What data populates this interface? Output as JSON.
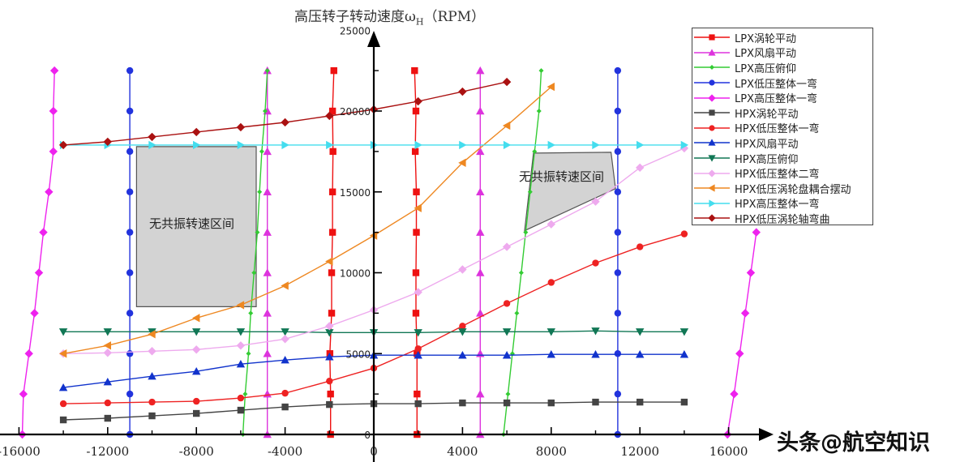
{
  "chart_data": {
    "type": "line",
    "title": "高压转子转动速度ω_H（RPM）",
    "title_main": "高压转子转动速度ω",
    "title_sub": "H",
    "title_unit": "（RPM）",
    "xlabel": "",
    "ylabel": "高压转子转动速度ω_H（RPM）",
    "xlim": [
      -17000,
      17500
    ],
    "ylim": [
      0,
      25000
    ],
    "x_ticks": [
      -16000,
      -12000,
      -8000,
      -4000,
      0,
      4000,
      8000,
      12000,
      16000
    ],
    "x_tick_labels": [
      "-16000",
      "-12000",
      "-8000",
      "-4000",
      "0",
      "4000",
      "8000",
      "12000",
      "16000"
    ],
    "x_minor_ticks": [
      -14000,
      -10000,
      -6000,
      -2000,
      2000,
      6000,
      10000,
      14000
    ],
    "y_ticks": [
      0,
      5000,
      10000,
      15000,
      20000,
      25000
    ],
    "y_tick_labels": [
      "0",
      "5000",
      "10000",
      "15000",
      "20000",
      "25000"
    ],
    "y_minor_ticks": [
      2500,
      7500,
      12500,
      17500,
      22500
    ],
    "grid": false,
    "legend_position": "upper right",
    "annotations": [
      {
        "text": "无共振转速区间",
        "region": "left",
        "polygon": [
          [
            -10700,
            17800
          ],
          [
            -5300,
            17800
          ],
          [
            -5300,
            7900
          ],
          [
            -10700,
            7900
          ]
        ]
      },
      {
        "text": "无共振转速区间",
        "region": "right",
        "polygon": [
          [
            7200,
            17400
          ],
          [
            10700,
            17450
          ],
          [
            10900,
            15200
          ],
          [
            6800,
            12600
          ]
        ]
      }
    ],
    "series": [
      {
        "name": "LPX涡轮平动",
        "color": "#ee1111",
        "marker": "square",
        "segments": [
          [
            [
              -1950,
              0
            ],
            [
              -1950,
              2500
            ],
            [
              -1980,
              5000
            ],
            [
              -1900,
              7500
            ],
            [
              -1900,
              10000
            ],
            [
              -1860,
              12500
            ],
            [
              -1860,
              15000
            ],
            [
              -1840,
              17500
            ],
            [
              -1860,
              20000
            ],
            [
              -1800,
              22500
            ]
          ],
          [
            [
              1950,
              0
            ],
            [
              1950,
              2500
            ],
            [
              1950,
              5000
            ],
            [
              1900,
              7500
            ],
            [
              1900,
              10000
            ],
            [
              1920,
              12500
            ],
            [
              1920,
              15000
            ],
            [
              1870,
              17500
            ],
            [
              1900,
              20000
            ],
            [
              1840,
              22500
            ]
          ]
        ]
      },
      {
        "name": "LPX风扇平动",
        "color": "#dd33dd",
        "marker": "triangle-up",
        "segments": [
          [
            [
              -4800,
              0
            ],
            [
              -4800,
              2500
            ],
            [
              -4800,
              5000
            ],
            [
              -4800,
              7500
            ],
            [
              -4800,
              10000
            ],
            [
              -4800,
              12500
            ],
            [
              -4800,
              15000
            ],
            [
              -4800,
              17500
            ],
            [
              -4800,
              20000
            ],
            [
              -4800,
              22500
            ]
          ],
          [
            [
              4800,
              0
            ],
            [
              4800,
              2500
            ],
            [
              4800,
              5000
            ],
            [
              4800,
              7500
            ],
            [
              4800,
              10000
            ],
            [
              4800,
              12500
            ],
            [
              4800,
              15000
            ],
            [
              4800,
              17500
            ],
            [
              4800,
              20000
            ],
            [
              4800,
              22500
            ]
          ]
        ]
      },
      {
        "name": "LPX高压俯仰",
        "color": "#33cc33",
        "marker": "small-diamond",
        "segments": [
          [
            [
              -5900,
              0
            ],
            [
              -5800,
              2500
            ],
            [
              -5650,
              5000
            ],
            [
              -5550,
              7500
            ],
            [
              -5400,
              10000
            ],
            [
              -5250,
              12500
            ],
            [
              -5150,
              15000
            ],
            [
              -5050,
              17500
            ],
            [
              -4900,
              20000
            ],
            [
              -4800,
              22500
            ]
          ],
          [
            [
              5850,
              0
            ],
            [
              6050,
              2500
            ],
            [
              6250,
              5000
            ],
            [
              6450,
              7500
            ],
            [
              6650,
              10000
            ],
            [
              6850,
              12500
            ],
            [
              7050,
              15000
            ],
            [
              7250,
              17500
            ],
            [
              7450,
              20000
            ],
            [
              7550,
              22500
            ]
          ]
        ]
      },
      {
        "name": "LPX低压整体一弯",
        "color": "#2233dd",
        "marker": "circle",
        "segments": [
          [
            [
              -11000,
              0
            ],
            [
              -11000,
              2500
            ],
            [
              -11000,
              5000
            ],
            [
              -11000,
              7500
            ],
            [
              -11000,
              10000
            ],
            [
              -11000,
              12500
            ],
            [
              -11000,
              15000
            ],
            [
              -11000,
              17500
            ],
            [
              -11000,
              20000
            ],
            [
              -11000,
              22500
            ]
          ],
          [
            [
              11000,
              0
            ],
            [
              11000,
              2500
            ],
            [
              11000,
              5000
            ],
            [
              11000,
              7500
            ],
            [
              11000,
              10000
            ],
            [
              11000,
              12500
            ],
            [
              11000,
              15000
            ],
            [
              11000,
              17500
            ],
            [
              11000,
              20000
            ],
            [
              11000,
              22500
            ]
          ]
        ]
      },
      {
        "name": "LPX高压整体一弯",
        "color": "#ee22ee",
        "marker": "diamond",
        "segments": [
          [
            [
              -15850,
              0
            ],
            [
              -15800,
              2500
            ],
            [
              -15550,
              5000
            ],
            [
              -15300,
              7500
            ],
            [
              -15100,
              10000
            ],
            [
              -14900,
              12500
            ],
            [
              -14650,
              15000
            ],
            [
              -14450,
              17500
            ],
            [
              -14450,
              20000
            ],
            [
              -14400,
              22500
            ]
          ],
          [
            [
              15950,
              0
            ],
            [
              16250,
              2500
            ],
            [
              16500,
              5000
            ],
            [
              16750,
              7500
            ],
            [
              17000,
              10000
            ],
            [
              17250,
              12500
            ]
          ]
        ]
      },
      {
        "name": "HPX涡轮平动",
        "color": "#444444",
        "marker": "square",
        "x": [
          -14000,
          -12000,
          -10000,
          -8000,
          -6000,
          -4000,
          -2000,
          0,
          2000,
          4000,
          6000,
          8000,
          10000,
          12000,
          14000
        ],
        "values": [
          900,
          1000,
          1150,
          1300,
          1500,
          1700,
          1850,
          1900,
          1900,
          1950,
          1950,
          1950,
          2000,
          2000,
          2000
        ]
      },
      {
        "name": "HPX低压整体一弯",
        "color": "#ee2222",
        "marker": "circle",
        "x": [
          -14000,
          -12000,
          -10000,
          -8000,
          -6000,
          -4000,
          -2000,
          0,
          2000,
          4000,
          6000,
          8000,
          10000,
          12000,
          14000
        ],
        "values": [
          1900,
          1950,
          2000,
          2050,
          2250,
          2550,
          3300,
          4100,
          5300,
          6700,
          8100,
          9400,
          10600,
          11600,
          12400
        ]
      },
      {
        "name": "HPX风扇平动",
        "color": "#1133cc",
        "marker": "triangle-up",
        "x": [
          -14000,
          -12000,
          -10000,
          -8000,
          -6000,
          -4000,
          -2000,
          0,
          2000,
          4000,
          6000,
          8000,
          10000,
          12000,
          14000
        ],
        "values": [
          2900,
          3250,
          3600,
          3900,
          4350,
          4600,
          4800,
          4900,
          4900,
          4900,
          4900,
          4950,
          4950,
          4950,
          4950
        ]
      },
      {
        "name": "HPX高压俯仰",
        "color": "#117755",
        "marker": "triangle-down",
        "x": [
          -14000,
          -12000,
          -10000,
          -8000,
          -6000,
          -4000,
          -2000,
          0,
          2000,
          4000,
          6000,
          8000,
          10000,
          12000,
          14000
        ],
        "values": [
          6350,
          6350,
          6350,
          6350,
          6350,
          6350,
          6300,
          6300,
          6300,
          6350,
          6350,
          6350,
          6400,
          6350,
          6350
        ]
      },
      {
        "name": "HPX低压整体二弯",
        "color": "#eeaaee",
        "marker": "diamond",
        "x": [
          -14000,
          -12000,
          -10000,
          -8000,
          -6000,
          -4000,
          -2000,
          0,
          2000,
          4000,
          6000,
          8000,
          10000,
          12000,
          14000
        ],
        "values": [
          5000,
          5050,
          5150,
          5250,
          5500,
          5900,
          6700,
          7700,
          8800,
          10200,
          11600,
          13000,
          14400,
          16500,
          17700
        ]
      },
      {
        "name": "HPX低压涡轮盘耦合摆动",
        "color": "#ee8822",
        "marker": "triangle-left",
        "x": [
          -14000,
          -12000,
          -10000,
          -8000,
          -6000,
          -4000,
          -2000,
          0,
          2000,
          4000,
          6000,
          8000
        ],
        "values": [
          5000,
          5500,
          6200,
          7200,
          8000,
          9200,
          10700,
          12300,
          14000,
          16800,
          19100,
          21500
        ]
      },
      {
        "name": "HPX高压整体一弯",
        "color": "#44ddee",
        "marker": "triangle-right",
        "x": [
          -14000,
          -12000,
          -10000,
          -8000,
          -6000,
          -4000,
          -2000,
          0,
          2000,
          4000,
          6000,
          8000,
          10000,
          12000,
          14000
        ],
        "values": [
          17900,
          17900,
          17900,
          17900,
          17900,
          17900,
          17900,
          17900,
          17900,
          17900,
          17900,
          17900,
          17900,
          17900,
          17900
        ]
      },
      {
        "name": "HPX低压涡轮轴弯曲",
        "color": "#aa1111",
        "marker": "diamond",
        "x": [
          -14000,
          -12000,
          -10000,
          -8000,
          -6000,
          -4000,
          -2000,
          0,
          2000,
          4000,
          6000
        ],
        "values": [
          17900,
          18100,
          18400,
          18700,
          19000,
          19300,
          19700,
          20100,
          20600,
          21200,
          21800
        ]
      }
    ]
  },
  "watermark": "头条@航空知识",
  "legend": {
    "items": [
      {
        "label": "LPX涡轮平动"
      },
      {
        "label": "LPX风扇平动"
      },
      {
        "label": "LPX高压俯仰"
      },
      {
        "label": "LPX低压整体一弯"
      },
      {
        "label": "LPX高压整体一弯"
      },
      {
        "label": "HPX涡轮平动"
      },
      {
        "label": "HPX低压整体一弯"
      },
      {
        "label": "HPX风扇平动"
      },
      {
        "label": "HPX高压俯仰"
      },
      {
        "label": "HPX低压整体二弯"
      },
      {
        "label": "HPX低压涡轮盘耦合摆动"
      },
      {
        "label": "HPX高压整体一弯"
      },
      {
        "label": "HPX低压涡轮轴弯曲"
      }
    ]
  },
  "regions": {
    "left_label": "无共振转速区间",
    "right_label": "无共振转速区间"
  }
}
